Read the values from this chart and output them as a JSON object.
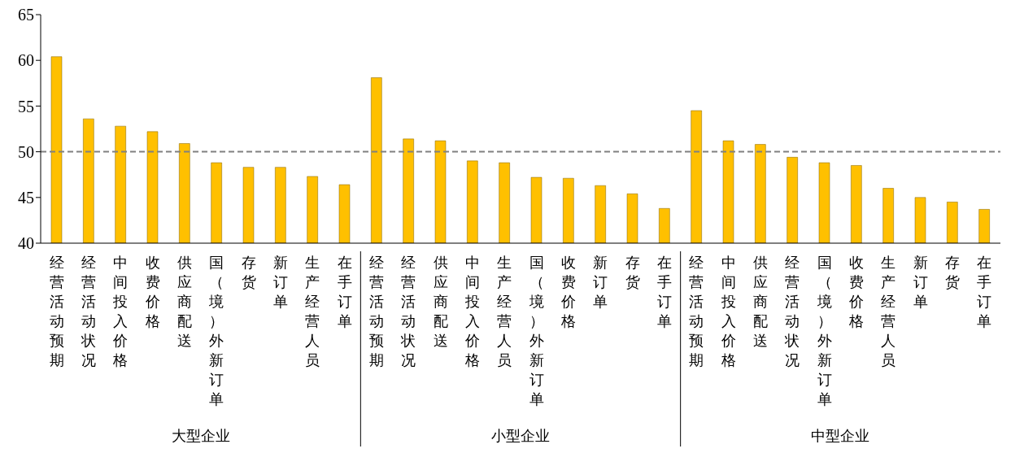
{
  "chart_data": {
    "type": "bar",
    "categories": [
      "经营活动预期",
      "经营活动状况",
      "中间投入价格",
      "收费价格",
      "供应商配送",
      "国（境）外新订单",
      "存货",
      "新订单",
      "生产经营人员",
      "在手订单",
      "经营活动预期",
      "经营活动状况",
      "供应商配送",
      "中间投入价格",
      "生产经营人员",
      "国（境）外新订单",
      "收费价格",
      "新订单",
      "存货",
      "在手订单",
      "经营活动预期",
      "中间投入价格",
      "供应商配送",
      "经营活动状况",
      "国（境）外新订单",
      "收费价格",
      "生产经营人员",
      "新订单",
      "存货",
      "在手订单"
    ],
    "values": [
      60.4,
      53.6,
      52.8,
      52.2,
      50.9,
      48.8,
      48.3,
      48.3,
      47.3,
      46.4,
      58.1,
      51.4,
      51.2,
      49.0,
      48.8,
      47.2,
      47.1,
      46.3,
      45.4,
      43.8,
      54.5,
      51.2,
      50.8,
      49.4,
      48.8,
      48.5,
      46.0,
      45.0,
      44.5,
      43.7
    ],
    "color": "#ffc000",
    "ylim": [
      40,
      65
    ],
    "yticks": [
      40,
      45,
      50,
      55,
      60,
      65
    ],
    "ref_lines": [
      {
        "axis": "y",
        "value": 50,
        "color": "#808080",
        "line_style": "dashed"
      }
    ],
    "annotations": [
      "大型企业",
      "小型企业",
      "中型企业"
    ],
    "grid": false,
    "legend": false
  }
}
